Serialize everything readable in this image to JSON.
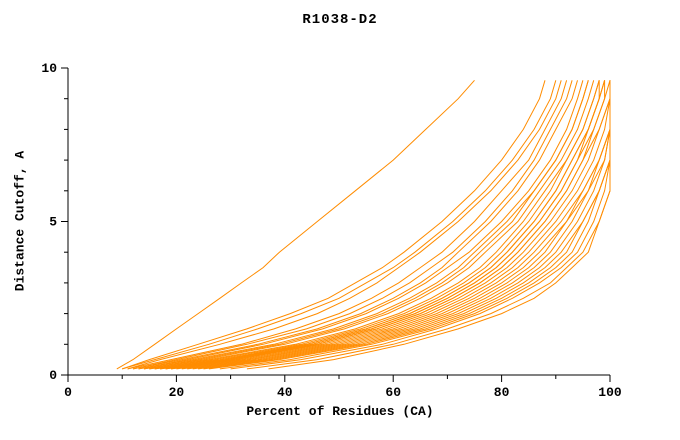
{
  "title": "R1038-D2",
  "chart_data": {
    "type": "line",
    "title": "R1038-D2",
    "xlabel": "Percent of Residues (CA)",
    "ylabel": "Distance Cutoff, A",
    "xlim": [
      0,
      100
    ],
    "ylim": [
      0,
      10
    ],
    "x_major_ticks": [
      0,
      20,
      40,
      60,
      80,
      100
    ],
    "x_minor_step": 10,
    "y_major_ticks": [
      0,
      5,
      10
    ],
    "y_minor_step": 1,
    "grid": false,
    "legend": "none",
    "line_color": "#ff8c00",
    "axis_color": "#000000",
    "background": "#ffffff",
    "cutoffs": [
      0.2,
      0.5,
      1.0,
      1.5,
      2.0,
      2.5,
      3.0,
      3.5,
      4.0,
      5.0,
      6.0,
      7.0,
      8.0,
      9.0,
      9.6
    ],
    "series": [
      [
        9,
        12,
        16,
        20,
        24,
        28,
        32,
        36,
        39,
        46,
        53,
        60,
        66,
        72,
        75
      ],
      [
        10,
        16,
        26,
        35,
        43,
        50,
        55,
        60,
        64,
        71,
        77,
        82,
        86,
        89,
        90
      ],
      [
        11,
        19,
        32,
        42,
        50,
        56,
        61,
        65,
        69,
        75,
        80,
        85,
        88,
        91,
        92
      ],
      [
        12,
        21,
        35,
        46,
        54,
        60,
        65,
        69,
        72,
        78,
        83,
        87,
        90,
        93,
        94
      ],
      [
        13,
        23,
        38,
        49,
        57,
        63,
        68,
        72,
        75,
        81,
        86,
        90,
        93,
        95,
        96
      ],
      [
        14,
        25,
        40,
        51,
        59,
        65,
        70,
        74,
        77,
        83,
        87,
        91,
        94,
        96,
        97
      ],
      [
        15,
        26,
        42,
        53,
        61,
        67,
        72,
        76,
        79,
        84,
        88,
        92,
        95,
        97,
        98
      ],
      [
        16,
        28,
        44,
        55,
        63,
        69,
        74,
        78,
        81,
        86,
        90,
        93,
        96,
        98,
        99
      ],
      [
        17,
        30,
        46,
        57,
        65,
        71,
        76,
        80,
        83,
        88,
        92,
        95,
        97,
        99,
        100
      ],
      [
        18,
        31,
        47,
        58,
        66,
        72,
        77,
        81,
        84,
        89,
        93,
        96,
        98,
        100,
        100
      ],
      [
        19,
        32,
        48,
        59,
        67,
        73,
        78,
        82,
        85,
        90,
        94,
        97,
        99,
        100,
        100
      ],
      [
        20,
        33,
        49,
        60,
        68,
        74,
        79,
        83,
        86,
        91,
        95,
        98,
        100,
        100,
        100
      ],
      [
        12,
        20,
        33,
        44,
        52,
        58,
        63,
        67,
        71,
        77,
        82,
        86,
        89,
        92,
        93
      ],
      [
        13,
        22,
        36,
        47,
        55,
        61,
        66,
        70,
        74,
        80,
        85,
        89,
        92,
        94,
        95
      ],
      [
        14,
        24,
        39,
        50,
        58,
        64,
        69,
        73,
        76,
        82,
        86,
        90,
        93,
        95,
        96
      ],
      [
        15,
        27,
        43,
        54,
        62,
        68,
        73,
        77,
        80,
        85,
        89,
        92,
        95,
        97,
        98
      ],
      [
        16,
        29,
        45,
        56,
        64,
        70,
        75,
        79,
        82,
        87,
        91,
        94,
        96,
        98,
        99
      ],
      [
        17,
        29,
        44,
        55,
        63,
        69,
        74,
        78,
        81,
        86,
        90,
        93,
        96,
        98,
        98
      ],
      [
        18,
        30,
        45,
        56,
        64,
        70,
        75,
        79,
        82,
        87,
        91,
        94,
        97,
        99,
        99
      ],
      [
        19,
        31,
        46,
        57,
        65,
        71,
        76,
        80,
        83,
        88,
        92,
        95,
        98,
        100,
        100
      ],
      [
        21,
        34,
        50,
        61,
        69,
        75,
        80,
        84,
        87,
        92,
        95,
        98,
        100,
        100,
        100
      ],
      [
        22,
        35,
        51,
        62,
        70,
        76,
        81,
        85,
        88,
        92,
        96,
        98,
        100,
        100,
        100
      ],
      [
        23,
        36,
        52,
        63,
        71,
        77,
        82,
        86,
        89,
        93,
        96,
        99,
        100,
        100,
        100
      ],
      [
        24,
        37,
        53,
        64,
        72,
        78,
        83,
        87,
        90,
        94,
        97,
        99,
        100,
        100,
        100
      ],
      [
        25,
        38,
        54,
        65,
        73,
        79,
        84,
        88,
        91,
        95,
        98,
        100,
        100,
        100,
        100
      ],
      [
        11,
        17,
        28,
        38,
        46,
        52,
        57,
        61,
        65,
        72,
        78,
        83,
        87,
        90,
        91
      ],
      [
        26,
        39,
        55,
        66,
        74,
        80,
        85,
        89,
        92,
        95,
        98,
        100,
        100,
        100,
        100
      ],
      [
        28,
        41,
        56,
        67,
        75,
        81,
        86,
        90,
        93,
        96,
        98,
        100,
        100,
        100,
        100
      ],
      [
        30,
        43,
        58,
        68,
        76,
        82,
        87,
        91,
        94,
        97,
        99,
        100,
        100,
        100,
        100
      ],
      [
        33,
        46,
        60,
        70,
        78,
        84,
        89,
        92,
        95,
        98,
        100,
        100,
        100,
        100,
        100
      ],
      [
        37,
        49,
        62,
        72,
        80,
        86,
        90,
        93,
        96,
        98,
        100,
        100,
        100,
        100,
        100
      ],
      [
        10,
        15,
        24,
        33,
        41,
        48,
        53,
        58,
        62,
        69,
        75,
        80,
        84,
        87,
        88
      ]
    ]
  }
}
